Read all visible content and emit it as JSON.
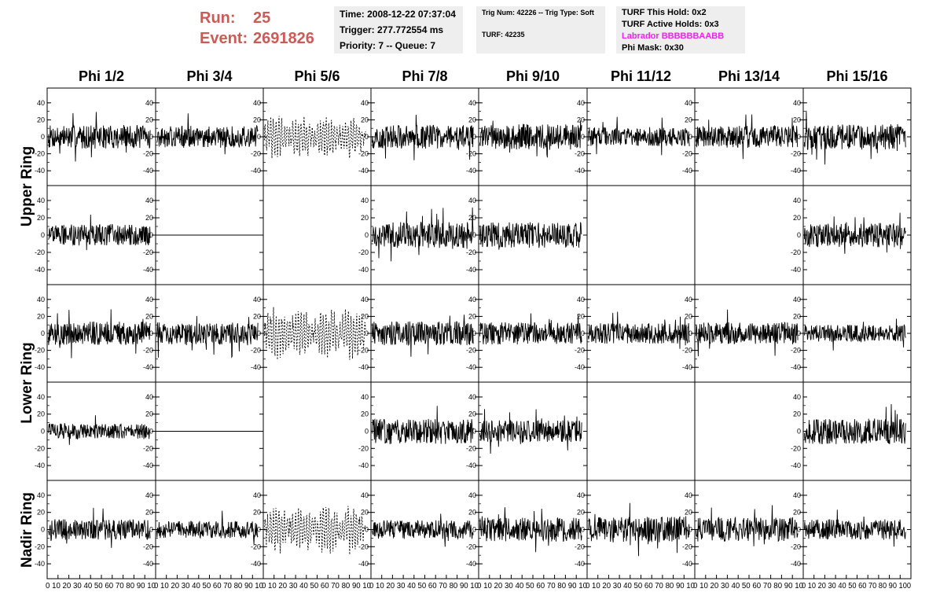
{
  "header": {
    "run_label": "Run:",
    "run_value": "25",
    "event_label": "Event:",
    "event_value": "2691826"
  },
  "info_box_1": {
    "line1": "Time: 2008-12-22 07:37:04",
    "line2": "Trigger: 277.772554 ms",
    "line3": "Priority: 7 -- Queue: 7"
  },
  "info_box_2": {
    "line1": "Trig Num: 42226 -- Trig Type: Soft",
    "line2": "TURF: 42235"
  },
  "info_box_3": {
    "line1": "TURF This Hold: 0x2",
    "line2": "TURF Active Holds: 0x3",
    "line3": "Labrador BBBBBBAABB",
    "line4": "Phi Mask: 0x30",
    "highlight_color": "#ee22ee"
  },
  "colors": {
    "run_event": "#cc5a55",
    "info_bg": "#eeeeee",
    "trace": "#000000"
  },
  "chart_data": {
    "type": "line",
    "columns": [
      "Phi 1/2",
      "Phi 3/4",
      "Phi 5/6",
      "Phi 7/8",
      "Phi 9/10",
      "Phi 11/12",
      "Phi 13/14",
      "Phi 15/16"
    ],
    "rows": [
      "Upper Ring",
      "Lower Ring",
      "Nadir Ring"
    ],
    "panel_rows": 5,
    "ylim": [
      -50,
      50
    ],
    "yticks": [
      -40,
      -20,
      0,
      20,
      40
    ],
    "xlim": [
      0,
      100
    ],
    "xticks": [
      0,
      10,
      20,
      30,
      40,
      50,
      60,
      70,
      80,
      90,
      100
    ],
    "x_tick_labels_text": "0 10 20 30 40 50 60 70 80 90 10",
    "x_tick_labels_last_text": "0 10 20 30 40 50 60 70 80 90 100",
    "panels": [
      {
        "row": 0,
        "col": 0,
        "style": "noise",
        "amplitude": 14
      },
      {
        "row": 0,
        "col": 1,
        "style": "noise",
        "amplitude": 13
      },
      {
        "row": 0,
        "col": 2,
        "style": "dashed",
        "amplitude": 20
      },
      {
        "row": 0,
        "col": 3,
        "style": "noise",
        "amplitude": 14
      },
      {
        "row": 0,
        "col": 4,
        "style": "noise",
        "amplitude": 15
      },
      {
        "row": 0,
        "col": 5,
        "style": "noise",
        "amplitude": 11
      },
      {
        "row": 0,
        "col": 6,
        "style": "noise",
        "amplitude": 13
      },
      {
        "row": 0,
        "col": 7,
        "style": "noise",
        "amplitude": 15
      },
      {
        "row": 1,
        "col": 0,
        "style": "noise",
        "amplitude": 12
      },
      {
        "row": 1,
        "col": 1,
        "style": "flat",
        "amplitude": 0
      },
      {
        "row": 1,
        "col": 2,
        "style": "empty",
        "amplitude": 0
      },
      {
        "row": 1,
        "col": 3,
        "style": "noise",
        "amplitude": 15
      },
      {
        "row": 1,
        "col": 4,
        "style": "noise",
        "amplitude": 15
      },
      {
        "row": 1,
        "col": 5,
        "style": "empty",
        "amplitude": 0
      },
      {
        "row": 1,
        "col": 6,
        "style": "empty",
        "amplitude": 0
      },
      {
        "row": 1,
        "col": 7,
        "style": "noise",
        "amplitude": 14
      },
      {
        "row": 2,
        "col": 0,
        "style": "noise",
        "amplitude": 14
      },
      {
        "row": 2,
        "col": 1,
        "style": "noise",
        "amplitude": 13
      },
      {
        "row": 2,
        "col": 2,
        "style": "dashed",
        "amplitude": 24
      },
      {
        "row": 2,
        "col": 3,
        "style": "noise",
        "amplitude": 14
      },
      {
        "row": 2,
        "col": 4,
        "style": "noise",
        "amplitude": 13
      },
      {
        "row": 2,
        "col": 5,
        "style": "noise",
        "amplitude": 12
      },
      {
        "row": 2,
        "col": 6,
        "style": "noise",
        "amplitude": 13
      },
      {
        "row": 2,
        "col": 7,
        "style": "noise",
        "amplitude": 10
      },
      {
        "row": 3,
        "col": 0,
        "style": "noise",
        "amplitude": 9
      },
      {
        "row": 3,
        "col": 1,
        "style": "flat",
        "amplitude": 0
      },
      {
        "row": 3,
        "col": 2,
        "style": "empty",
        "amplitude": 0
      },
      {
        "row": 3,
        "col": 3,
        "style": "noise",
        "amplitude": 15
      },
      {
        "row": 3,
        "col": 4,
        "style": "noise",
        "amplitude": 13
      },
      {
        "row": 3,
        "col": 5,
        "style": "empty",
        "amplitude": 0
      },
      {
        "row": 3,
        "col": 6,
        "style": "empty",
        "amplitude": 0
      },
      {
        "row": 3,
        "col": 7,
        "style": "noise",
        "amplitude": 15
      },
      {
        "row": 4,
        "col": 0,
        "style": "noise",
        "amplitude": 12
      },
      {
        "row": 4,
        "col": 1,
        "style": "noise",
        "amplitude": 10
      },
      {
        "row": 4,
        "col": 2,
        "style": "dashed",
        "amplitude": 22
      },
      {
        "row": 4,
        "col": 3,
        "style": "noise",
        "amplitude": 11
      },
      {
        "row": 4,
        "col": 4,
        "style": "noise",
        "amplitude": 14
      },
      {
        "row": 4,
        "col": 5,
        "style": "noise",
        "amplitude": 15
      },
      {
        "row": 4,
        "col": 6,
        "style": "noise",
        "amplitude": 14
      },
      {
        "row": 4,
        "col": 7,
        "style": "noise",
        "amplitude": 12
      }
    ]
  }
}
